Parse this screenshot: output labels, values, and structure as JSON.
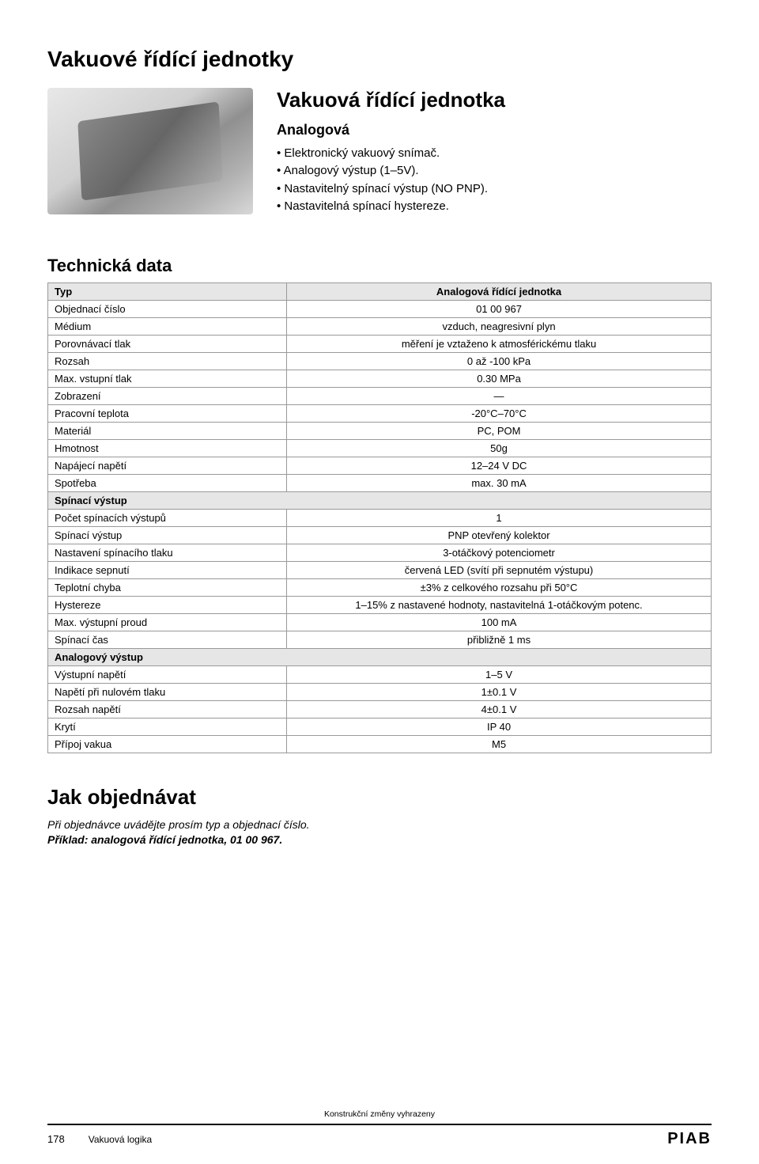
{
  "page_title": "Vakuové řídící jednotky",
  "hero": {
    "heading": "Vakuová řídící jednotka",
    "subheading": "Analogová",
    "bullets": [
      "Elektronický vakuový snímač.",
      "Analogový výstup (1–5V).",
      "Nastavitelný spínací výstup (NO PNP).",
      "Nastavitelná spínací hystereze."
    ]
  },
  "tech": {
    "title": "Technická data",
    "header_left": "Typ",
    "header_right": "Analogová řídící jednotka",
    "rows_top": [
      [
        "Objednací číslo",
        "01 00 967"
      ],
      [
        "Médium",
        "vzduch, neagresivní plyn"
      ],
      [
        "Porovnávací tlak",
        "měření je vztaženo k atmosférickému tlaku"
      ],
      [
        "Rozsah",
        "0 až -100 kPa"
      ],
      [
        "Max. vstupní tlak",
        "0.30 MPa"
      ],
      [
        "Zobrazení",
        "—"
      ],
      [
        "Pracovní teplota",
        "-20°C–70°C"
      ],
      [
        "Materiál",
        "PC, POM"
      ],
      [
        "Hmotnost",
        "50g"
      ],
      [
        "Napájecí napětí",
        "12–24 V DC"
      ],
      [
        "Spotřeba",
        "max. 30 mA"
      ]
    ],
    "section_switch": "Spínací výstup",
    "rows_switch": [
      [
        "Počet spínacích výstupů",
        "1"
      ],
      [
        "Spínací výstup",
        "PNP otevřený kolektor"
      ],
      [
        "Nastavení spínacího tlaku",
        "3-otáčkový potenciometr"
      ],
      [
        "Indikace sepnutí",
        "červená LED (svítí při sepnutém výstupu)"
      ],
      [
        "Teplotní chyba",
        "±3% z celkového rozsahu při 50°C"
      ],
      [
        "Hystereze",
        "1–15% z nastavené hodnoty, nastavitelná 1-otáčkovým potenc."
      ],
      [
        "Max. výstupní proud",
        "100 mA"
      ],
      [
        "Spínací čas",
        "přibližně 1 ms"
      ]
    ],
    "section_analog": "Analogový výstup",
    "rows_analog": [
      [
        "Výstupní napětí",
        "1–5 V"
      ],
      [
        "Napětí při nulovém tlaku",
        "1±0.1 V"
      ],
      [
        "Rozsah napětí",
        "4±0.1 V"
      ],
      [
        "Krytí",
        "IP 40"
      ],
      [
        "Přípoj vakua",
        "M5"
      ]
    ]
  },
  "order": {
    "title": "Jak objednávat",
    "line1": "Při objednávce uvádějte prosím typ a objednací číslo.",
    "line2": "Příklad: analogová řídící jednotka, 01 00 967."
  },
  "footer": {
    "note": "Konstrukční změny vyhrazeny",
    "page_num": "178",
    "section": "Vakuová logika",
    "logo": "PIAB"
  }
}
